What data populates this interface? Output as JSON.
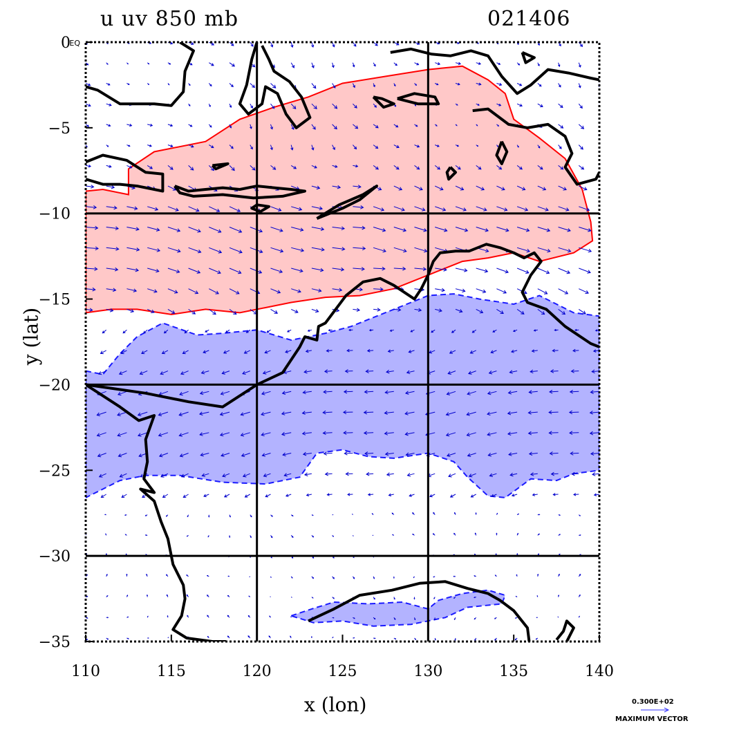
{
  "header": {
    "title_left": "u uv 850 mb",
    "title_right": "021406"
  },
  "axes": {
    "xlabel": "x (lon)",
    "ylabel": "y (lat)",
    "xlim": [
      110,
      140
    ],
    "ylim": [
      -35,
      0
    ],
    "xticks": [
      {
        "value": 110,
        "label": "110"
      },
      {
        "value": 115,
        "label": "115"
      },
      {
        "value": 120,
        "label": "120"
      },
      {
        "value": 125,
        "label": "125"
      },
      {
        "value": 130,
        "label": "130"
      },
      {
        "value": 135,
        "label": "135"
      },
      {
        "value": 140,
        "label": "140"
      }
    ],
    "yticks": [
      {
        "value": 0,
        "label": "0"
      },
      {
        "value": -5,
        "label": "−5"
      },
      {
        "value": -10,
        "label": "−10"
      },
      {
        "value": -15,
        "label": "−15"
      },
      {
        "value": -20,
        "label": "−20"
      },
      {
        "value": -25,
        "label": "−25"
      },
      {
        "value": -30,
        "label": "−30"
      },
      {
        "value": -35,
        "label": "−35"
      }
    ],
    "y0_suffix": "EQ",
    "grid_lon": [
      120,
      130
    ],
    "grid_lat": [
      -10,
      -20,
      -30
    ]
  },
  "max_vector": {
    "value": "0.300E+02",
    "label": "MAXIMUM VECTOR"
  },
  "colors": {
    "positive_fill": "#ffc8c8",
    "positive_line": "#ff0000",
    "negative_fill": "#b3b3ff",
    "negative_line": "#1a1aff",
    "vector": "#0000cc",
    "coast": "#000000"
  },
  "chart_data": {
    "type": "heatmap",
    "variable": "u",
    "level": "850 mb",
    "positive_regions": [
      [
        [
          112.5,
          -7.4
        ],
        [
          114,
          -6.4
        ],
        [
          117,
          -5.8
        ],
        [
          119,
          -4.5
        ],
        [
          121,
          -3.8
        ],
        [
          123,
          -3.2
        ],
        [
          125,
          -2.4
        ],
        [
          127.5,
          -2.0
        ],
        [
          130,
          -1.6
        ],
        [
          132,
          -1.4
        ],
        [
          133.5,
          -2.2
        ],
        [
          134.5,
          -3.0
        ],
        [
          135,
          -4.5
        ],
        [
          136.5,
          -5.6
        ],
        [
          138,
          -6.8
        ],
        [
          139,
          -8.6
        ],
        [
          139.5,
          -10.5
        ],
        [
          139.6,
          -11.6
        ],
        [
          138.5,
          -12.3
        ],
        [
          136.5,
          -12.8
        ],
        [
          135,
          -12.3
        ],
        [
          133.5,
          -12.6
        ],
        [
          132,
          -12.8
        ],
        [
          130,
          -13.6
        ],
        [
          128,
          -14.4
        ],
        [
          126,
          -14.8
        ],
        [
          124,
          -14.9
        ],
        [
          122,
          -15.2
        ],
        [
          120.5,
          -15.5
        ],
        [
          119,
          -15.8
        ],
        [
          117,
          -15.6
        ],
        [
          115,
          -15.9
        ],
        [
          113,
          -15.6
        ],
        [
          111.5,
          -15.6
        ],
        [
          110,
          -15.8
        ],
        [
          110,
          -8.7
        ],
        [
          111,
          -8.6
        ],
        [
          112.5,
          -8.9
        ],
        [
          112.5,
          -7.4
        ]
      ]
    ],
    "negative_regions": [
      [
        [
          110,
          -19.2
        ],
        [
          111,
          -19.4
        ],
        [
          112,
          -18.2
        ],
        [
          113,
          -17.2
        ],
        [
          114.5,
          -16.4
        ],
        [
          116.5,
          -17.1
        ],
        [
          118,
          -17.0
        ],
        [
          120,
          -16.8
        ],
        [
          122,
          -17.4
        ],
        [
          124,
          -17.0
        ],
        [
          125.5,
          -16.6
        ],
        [
          127,
          -16.0
        ],
        [
          128.5,
          -15.4
        ],
        [
          130,
          -14.8
        ],
        [
          131.5,
          -14.7
        ],
        [
          133,
          -15.0
        ],
        [
          135,
          -15.3
        ],
        [
          136.5,
          -14.8
        ],
        [
          137.5,
          -15.3
        ],
        [
          138.5,
          -15.8
        ],
        [
          140,
          -16.0
        ],
        [
          140,
          -25.0
        ],
        [
          138.5,
          -25.2
        ],
        [
          137.5,
          -25.6
        ],
        [
          136,
          -25.5
        ],
        [
          134.5,
          -26.6
        ],
        [
          133.5,
          -26.5
        ],
        [
          132.3,
          -25.4
        ],
        [
          131.5,
          -24.5
        ],
        [
          130,
          -24.0
        ],
        [
          128,
          -24.3
        ],
        [
          126.5,
          -24.2
        ],
        [
          125,
          -23.8
        ],
        [
          123.5,
          -24.0
        ],
        [
          122.5,
          -25.4
        ],
        [
          120.5,
          -25.8
        ],
        [
          118,
          -25.7
        ],
        [
          115.5,
          -25.3
        ],
        [
          113.5,
          -25.3
        ],
        [
          112,
          -25.6
        ],
        [
          110,
          -26.6
        ],
        [
          110,
          -19.2
        ]
      ],
      [
        [
          122,
          -33.5
        ],
        [
          123.2,
          -33.1
        ],
        [
          124.5,
          -32.7
        ],
        [
          126.5,
          -32.8
        ],
        [
          128.5,
          -32.7
        ],
        [
          130,
          -33.1
        ],
        [
          130.6,
          -32.6
        ],
        [
          132,
          -32.2
        ],
        [
          133.5,
          -32.0
        ],
        [
          134.5,
          -32.3
        ],
        [
          134.3,
          -32.8
        ],
        [
          132.3,
          -33.0
        ],
        [
          131,
          -33.6
        ],
        [
          129,
          -34.0
        ],
        [
          126.8,
          -34.1
        ],
        [
          125,
          -33.8
        ],
        [
          123.3,
          -33.9
        ],
        [
          122,
          -33.5
        ]
      ]
    ],
    "coastlines": [
      [
        [
          110,
          -20.0
        ],
        [
          113.5,
          -20.5
        ],
        [
          116,
          -21.0
        ],
        [
          118,
          -21.3
        ],
        [
          120,
          -20.0
        ],
        [
          121.5,
          -19.3
        ],
        [
          122.5,
          -17.8
        ],
        [
          122.8,
          -17.2
        ],
        [
          123.5,
          -17.4
        ],
        [
          123.6,
          -16.6
        ],
        [
          124,
          -16.4
        ],
        [
          124.6,
          -15.6
        ],
        [
          125.2,
          -14.8
        ],
        [
          126.2,
          -14.0
        ],
        [
          127.2,
          -13.8
        ],
        [
          128,
          -14.2
        ],
        [
          129.2,
          -15.0
        ],
        [
          129.6,
          -14.4
        ],
        [
          130,
          -13.6
        ],
        [
          130.3,
          -12.8
        ],
        [
          130.7,
          -12.3
        ],
        [
          131.6,
          -12.2
        ],
        [
          132.4,
          -12.2
        ],
        [
          133.4,
          -11.8
        ],
        [
          134.2,
          -12.0
        ],
        [
          135,
          -12.3
        ],
        [
          135.6,
          -12.6
        ],
        [
          136.2,
          -12.3
        ],
        [
          136.6,
          -12.8
        ],
        [
          136,
          -13.6
        ],
        [
          135.5,
          -14.6
        ],
        [
          135.8,
          -15.2
        ],
        [
          136.9,
          -15.6
        ],
        [
          138,
          -16.6
        ],
        [
          139.5,
          -17.6
        ],
        [
          140,
          -17.8
        ]
      ],
      [
        [
          110,
          -20.0
        ],
        [
          112.0,
          -21.3
        ],
        [
          113.1,
          -22.1
        ],
        [
          114.0,
          -21.8
        ],
        [
          113.5,
          -23.2
        ],
        [
          113.6,
          -24.5
        ],
        [
          113.4,
          -25.5
        ],
        [
          114.0,
          -26.3
        ],
        [
          113.2,
          -26.1
        ],
        [
          114.0,
          -26.8
        ],
        [
          114.4,
          -28.0
        ],
        [
          114.8,
          -29.0
        ],
        [
          115.1,
          -30.5
        ],
        [
          115.7,
          -31.7
        ],
        [
          115.8,
          -32.5
        ],
        [
          115.6,
          -33.5
        ],
        [
          115.1,
          -34.3
        ],
        [
          115.9,
          -34.8
        ],
        [
          117.4,
          -35.0
        ],
        [
          118.2,
          -35.0
        ]
      ],
      [
        [
          123.0,
          -33.8
        ],
        [
          124.5,
          -33.1
        ],
        [
          126.0,
          -32.3
        ],
        [
          127.9,
          -32.0
        ],
        [
          129.5,
          -31.6
        ],
        [
          131.0,
          -31.5
        ],
        [
          132.3,
          -31.9
        ],
        [
          133.5,
          -32.2
        ],
        [
          134.2,
          -32.6
        ],
        [
          135.0,
          -33.2
        ],
        [
          135.8,
          -34.2
        ],
        [
          135.9,
          -35.0
        ]
      ],
      [
        [
          137.5,
          -34.9
        ],
        [
          137.9,
          -34.4
        ],
        [
          138.1,
          -33.8
        ],
        [
          138.5,
          -34.2
        ],
        [
          138.1,
          -35.0
        ]
      ],
      [
        [
          110,
          -7.0
        ],
        [
          111.0,
          -6.6
        ],
        [
          112.4,
          -6.9
        ],
        [
          113.5,
          -7.6
        ],
        [
          114.5,
          -7.7
        ],
        [
          114.5,
          -8.7
        ],
        [
          113.0,
          -8.4
        ],
        [
          112.0,
          -8.3
        ],
        [
          111.0,
          -8.3
        ],
        [
          110,
          -8.0
        ]
      ],
      [
        [
          115.2,
          -8.4
        ],
        [
          116.0,
          -8.7
        ],
        [
          117.0,
          -8.6
        ],
        [
          118.0,
          -8.5
        ],
        [
          119.0,
          -8.6
        ],
        [
          120.0,
          -8.4
        ],
        [
          121.0,
          -8.5
        ],
        [
          122.0,
          -8.6
        ],
        [
          122.8,
          -8.7
        ],
        [
          121.5,
          -9.0
        ],
        [
          119.8,
          -9.1
        ],
        [
          118.0,
          -8.9
        ],
        [
          116.3,
          -9.0
        ],
        [
          115.5,
          -8.8
        ],
        [
          115.2,
          -8.4
        ]
      ],
      [
        [
          123.5,
          -10.3
        ],
        [
          124.8,
          -9.5
        ],
        [
          126.2,
          -8.9
        ],
        [
          127.0,
          -8.4
        ],
        [
          126.0,
          -9.2
        ],
        [
          125.0,
          -9.7
        ],
        [
          123.5,
          -10.3
        ]
      ],
      [
        [
          120.0,
          -9.5
        ],
        [
          120.7,
          -9.6
        ],
        [
          120.2,
          -9.9
        ],
        [
          119.7,
          -9.7
        ],
        [
          120.0,
          -9.5
        ]
      ],
      [
        [
          120.0,
          0
        ],
        [
          119.7,
          -1.0
        ],
        [
          119.4,
          -2.5
        ],
        [
          119.0,
          -3.6
        ],
        [
          119.5,
          -4.2
        ],
        [
          120.3,
          -3.6
        ],
        [
          120.5,
          -2.6
        ],
        [
          121.2,
          -3.0
        ],
        [
          121.7,
          -4.2
        ],
        [
          122.3,
          -5.0
        ],
        [
          123.1,
          -4.4
        ],
        [
          122.6,
          -3.2
        ],
        [
          121.9,
          -2.3
        ],
        [
          121.0,
          -1.7
        ],
        [
          120.7,
          -1.0
        ],
        [
          120.3,
          -0.2
        ]
      ],
      [
        [
          115.5,
          0
        ],
        [
          116.3,
          -0.5
        ],
        [
          115.8,
          -1.7
        ],
        [
          115.7,
          -2.9
        ],
        [
          115.0,
          -3.7
        ],
        [
          114.0,
          -3.6
        ],
        [
          112.8,
          -3.6
        ],
        [
          112.0,
          -3.6
        ],
        [
          110.7,
          -2.8
        ],
        [
          110,
          -2.6
        ]
      ],
      [
        [
          127.8,
          -0.6
        ],
        [
          129.0,
          -0.4
        ],
        [
          130.2,
          -0.7
        ],
        [
          131.3,
          -0.8
        ],
        [
          132.5,
          -0.5
        ],
        [
          133.5,
          -0.8
        ],
        [
          134.3,
          -2.0
        ],
        [
          135.2,
          -3.0
        ],
        [
          136.0,
          -2.5
        ],
        [
          137.0,
          -1.6
        ],
        [
          138.2,
          -1.8
        ],
        [
          139.5,
          -2.1
        ],
        [
          140,
          -2.2
        ]
      ],
      [
        [
          132.6,
          -4.0
        ],
        [
          133.5,
          -3.9
        ],
        [
          134.7,
          -4.8
        ],
        [
          135.8,
          -5.0
        ],
        [
          137.0,
          -4.8
        ],
        [
          138.0,
          -5.5
        ],
        [
          138.4,
          -6.5
        ],
        [
          138.0,
          -7.3
        ],
        [
          138.7,
          -8.3
        ],
        [
          139.8,
          -8.0
        ],
        [
          140,
          -7.6
        ]
      ],
      [
        [
          126.8,
          -3.2
        ],
        [
          127.3,
          -3.3
        ],
        [
          128.0,
          -3.6
        ],
        [
          127.4,
          -3.8
        ],
        [
          126.8,
          -3.2
        ]
      ],
      [
        [
          128.2,
          -3.3
        ],
        [
          129.2,
          -3.0
        ],
        [
          130.4,
          -3.2
        ],
        [
          130.6,
          -3.6
        ],
        [
          129.4,
          -3.6
        ],
        [
          128.2,
          -3.3
        ]
      ],
      [
        [
          134.3,
          -5.8
        ],
        [
          134.6,
          -6.4
        ],
        [
          134.3,
          -7.1
        ],
        [
          134.0,
          -6.6
        ],
        [
          134.3,
          -5.8
        ]
      ],
      [
        [
          131.3,
          -7.3
        ],
        [
          131.6,
          -7.6
        ],
        [
          131.2,
          -8.0
        ],
        [
          131.1,
          -7.6
        ],
        [
          131.3,
          -7.3
        ]
      ],
      [
        [
          117.4,
          -7.2
        ],
        [
          118.3,
          -7.1
        ],
        [
          117.6,
          -7.4
        ],
        [
          117.4,
          -7.2
        ]
      ],
      [
        [
          135.5,
          -0.6
        ],
        [
          136.2,
          -0.9
        ],
        [
          135.7,
          -1.2
        ],
        [
          135.5,
          -0.6
        ]
      ]
    ],
    "vector_field_regions": [
      {
        "lat_range": [
          -16,
          -7
        ],
        "u_sign": "positive",
        "direction": "west-to-east"
      },
      {
        "lat_range": [
          -27,
          -16
        ],
        "u_sign": "negative",
        "direction": "east-to-west"
      }
    ]
  }
}
